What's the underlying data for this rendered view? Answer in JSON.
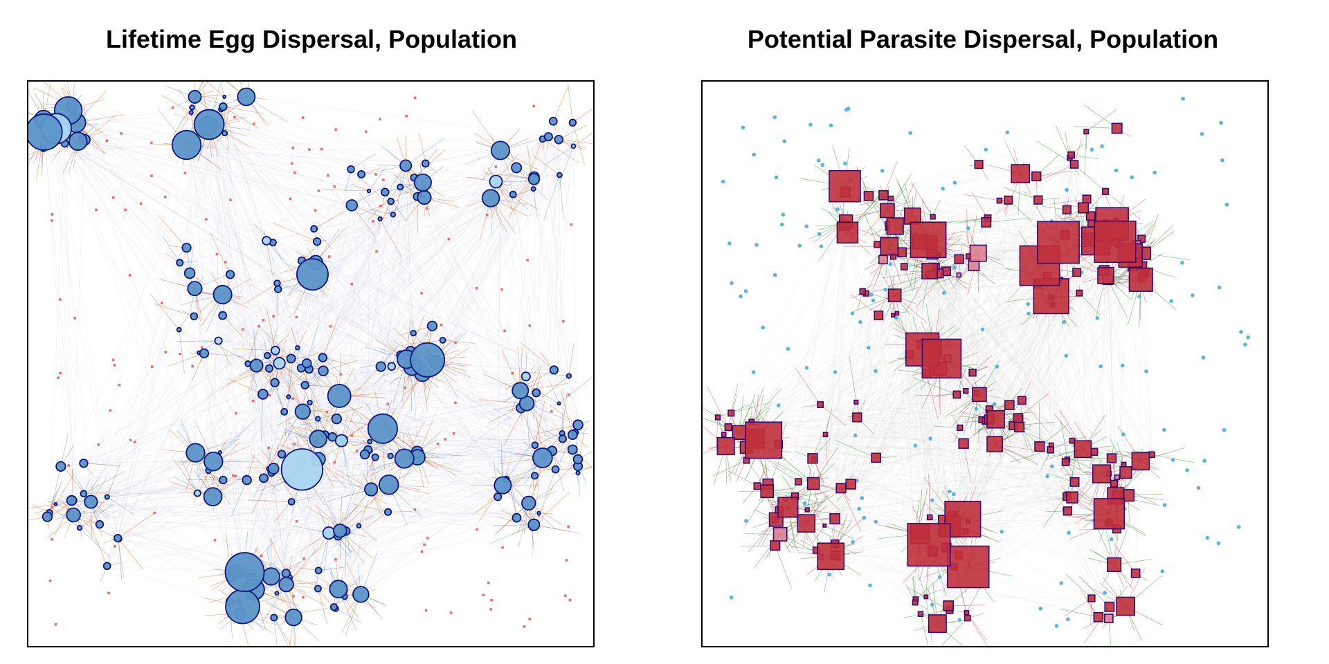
{
  "panels": [
    {
      "title": "Lifetime Egg Dispersal, Population",
      "style": "egg",
      "colors": {
        "node_fill": "#5b95c8",
        "node_highlight": "#a9d4f0",
        "node_stroke": "#0d1580",
        "edge_in": "#d2691e",
        "edge_out": "#5b8fd0",
        "marker": "#f26b6b",
        "faint_edge": "#b8b8d8"
      }
    },
    {
      "title": "Potential Parasite Dispersal, Population",
      "style": "parasite",
      "colors": {
        "node_fill": "#c0303c",
        "node_highlight": "#e08090",
        "node_stroke": "#3a0a6e",
        "edge_in": "#2e8b2e",
        "edge_out": "#d23c50",
        "marker": "#5ab4e0",
        "faint_edge": "#c8c8c8"
      }
    }
  ]
}
